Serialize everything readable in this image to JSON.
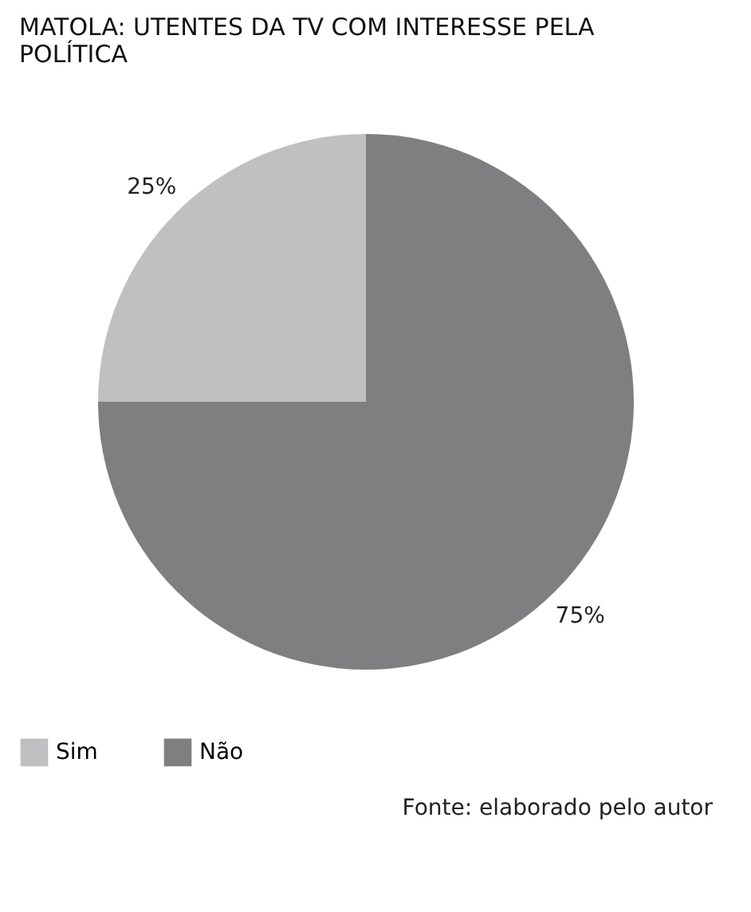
{
  "chart_data": {
    "type": "pie",
    "title": "MATOLA: UTENTES DA TV COM INTERESSE PELA POLÍTICA",
    "categories": [
      "Sim",
      "Não"
    ],
    "values": [
      25,
      75
    ],
    "colors": [
      "#c0c0c2",
      "#7f7f81"
    ],
    "value_labels": [
      "25%",
      "75%"
    ],
    "legend": "bottom",
    "annotations": [
      "Fonte: elaborado pelo autor"
    ]
  }
}
